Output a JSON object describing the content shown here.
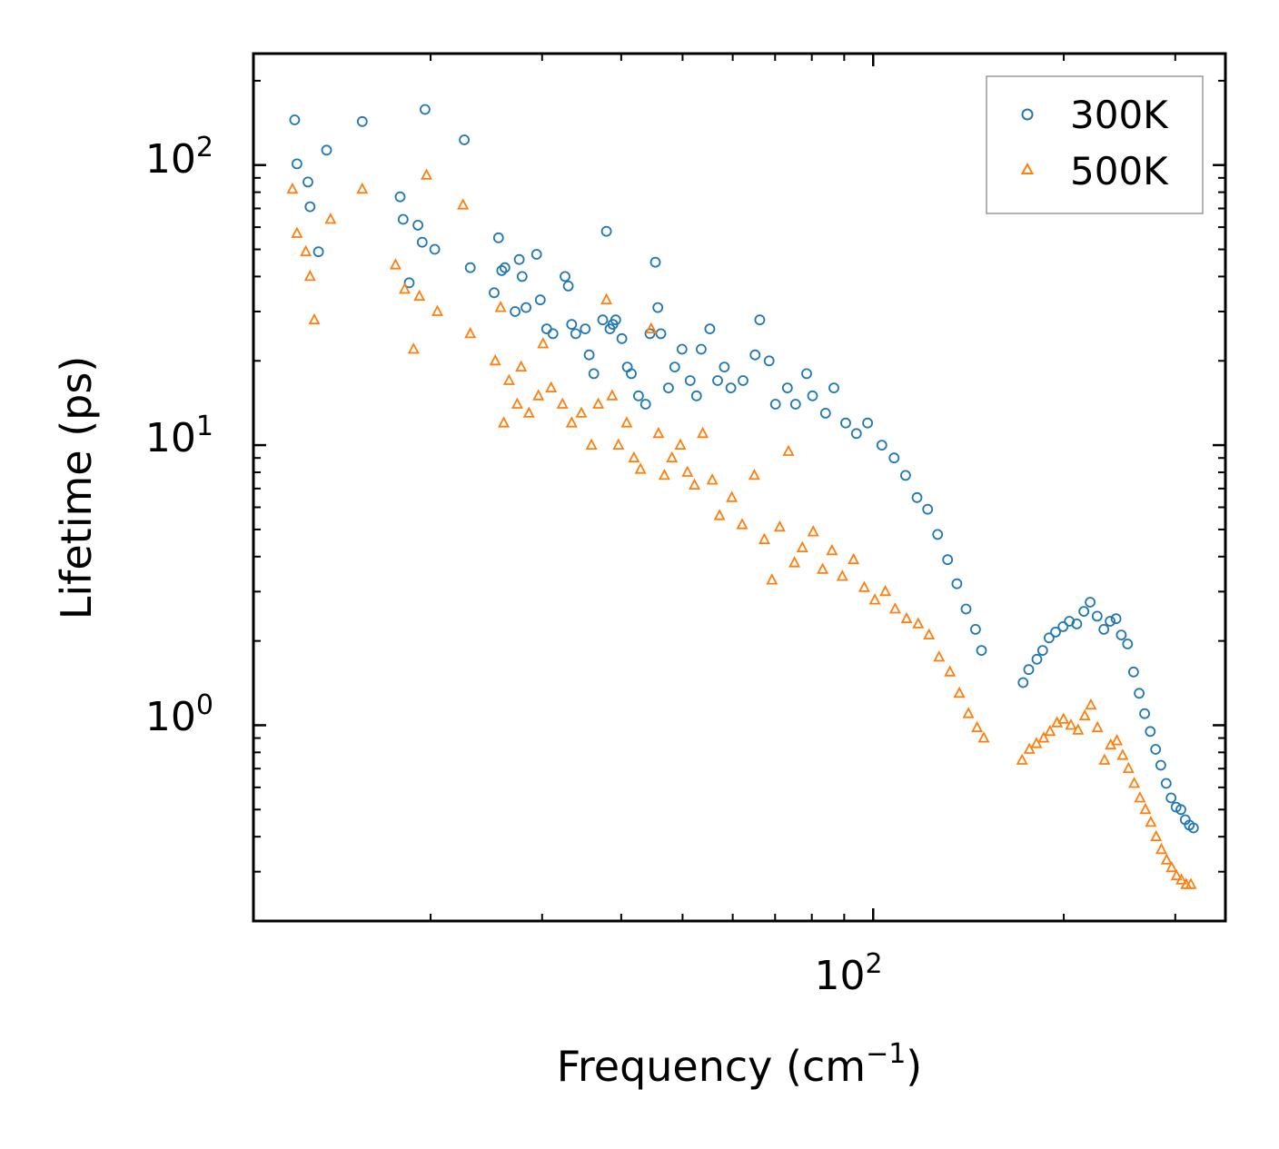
{
  "chart_data": {
    "type": "scatter",
    "title": "",
    "xlabel": "Frequency (cm",
    "xlabel_sup": "−1",
    "xlabel_close": ")",
    "ylabel": "Lifetime (ps)",
    "xscale": "log",
    "yscale": "log",
    "xlim": [
      10.5,
      360
    ],
    "ylim": [
      0.2,
      250
    ],
    "x_major_ticks": [
      {
        "value": 100,
        "base": "10",
        "exp": "2"
      }
    ],
    "y_major_ticks": [
      {
        "value": 1,
        "base": "10",
        "exp": "0"
      },
      {
        "value": 10,
        "base": "10",
        "exp": "1"
      },
      {
        "value": 100,
        "base": "10",
        "exp": "2"
      }
    ],
    "legend_position": "top-right",
    "series": [
      {
        "name": "300K",
        "marker": "circle",
        "color": "#1f77b4",
        "points": [
          [
            12.2,
            145
          ],
          [
            12.3,
            101
          ],
          [
            12.8,
            87
          ],
          [
            12.9,
            71
          ],
          [
            13.3,
            49
          ],
          [
            13.7,
            113
          ],
          [
            15.6,
            143
          ],
          [
            17.9,
            77
          ],
          [
            18.1,
            64
          ],
          [
            18.5,
            38
          ],
          [
            19.1,
            61
          ],
          [
            19.4,
            53
          ],
          [
            19.6,
            158
          ],
          [
            20.3,
            50
          ],
          [
            22.6,
            123
          ],
          [
            23.1,
            43
          ],
          [
            25.2,
            35
          ],
          [
            25.6,
            55
          ],
          [
            25.9,
            42
          ],
          [
            26.2,
            43
          ],
          [
            27.2,
            30
          ],
          [
            27.6,
            46
          ],
          [
            27.9,
            40
          ],
          [
            28.3,
            31
          ],
          [
            29.4,
            48
          ],
          [
            29.8,
            33
          ],
          [
            30.5,
            26
          ],
          [
            31.2,
            25
          ],
          [
            32.6,
            40
          ],
          [
            33.0,
            37
          ],
          [
            33.4,
            27
          ],
          [
            33.9,
            25
          ],
          [
            35.1,
            26
          ],
          [
            35.6,
            21
          ],
          [
            36.2,
            18
          ],
          [
            37.4,
            28
          ],
          [
            37.9,
            58
          ],
          [
            38.4,
            26
          ],
          [
            38.8,
            27
          ],
          [
            39.2,
            28
          ],
          [
            40.1,
            24
          ],
          [
            40.9,
            19
          ],
          [
            41.5,
            18
          ],
          [
            42.6,
            15
          ],
          [
            43.7,
            14
          ],
          [
            44.4,
            25
          ],
          [
            45.3,
            45
          ],
          [
            45.7,
            31
          ],
          [
            46.2,
            25
          ],
          [
            47.5,
            16
          ],
          [
            48.6,
            19
          ],
          [
            49.9,
            22
          ],
          [
            51.4,
            17
          ],
          [
            52.6,
            15
          ],
          [
            53.5,
            22
          ],
          [
            55.2,
            26
          ],
          [
            56.8,
            17
          ],
          [
            58.2,
            19
          ],
          [
            59.6,
            16
          ],
          [
            62.3,
            17
          ],
          [
            65.1,
            21
          ],
          [
            66.2,
            28
          ],
          [
            68.5,
            20
          ],
          [
            70.1,
            14
          ],
          [
            73.2,
            16
          ],
          [
            75.4,
            14
          ],
          [
            78.5,
            18
          ],
          [
            80.2,
            15
          ],
          [
            84.1,
            13
          ],
          [
            86.7,
            16
          ],
          [
            90.5,
            12
          ],
          [
            94.1,
            11
          ],
          [
            98.0,
            12
          ],
          [
            103.2,
            10
          ],
          [
            107.9,
            9
          ],
          [
            112.5,
            7.8
          ],
          [
            117.3,
            6.5
          ],
          [
            121.9,
            5.9
          ],
          [
            126.4,
            4.8
          ],
          [
            131.1,
            3.9
          ],
          [
            135.6,
            3.2
          ],
          [
            140.2,
            2.6
          ],
          [
            145.1,
            2.2
          ],
          [
            148.3,
            1.85
          ],
          [
            172.5,
            1.42
          ],
          [
            176.1,
            1.58
          ],
          [
            181.4,
            1.72
          ],
          [
            185.2,
            1.85
          ],
          [
            189.6,
            2.05
          ],
          [
            194.1,
            2.15
          ],
          [
            199.5,
            2.25
          ],
          [
            204.1,
            2.35
          ],
          [
            209.7,
            2.3
          ],
          [
            215.2,
            2.55
          ],
          [
            220.1,
            2.75
          ],
          [
            225.8,
            2.45
          ],
          [
            231.4,
            2.2
          ],
          [
            236.7,
            2.35
          ],
          [
            241.9,
            2.4
          ],
          [
            246.5,
            2.1
          ],
          [
            252.2,
            1.95
          ],
          [
            257.8,
            1.55
          ],
          [
            263.1,
            1.3
          ],
          [
            268.4,
            1.1
          ],
          [
            273.9,
            0.95
          ],
          [
            279.3,
            0.82
          ],
          [
            284.6,
            0.72
          ],
          [
            290.2,
            0.62
          ],
          [
            295.5,
            0.55
          ],
          [
            300.9,
            0.51
          ],
          [
            306.2,
            0.5
          ],
          [
            311.1,
            0.46
          ],
          [
            315.8,
            0.44
          ],
          [
            320.5,
            0.43
          ]
        ]
      },
      {
        "name": "500K",
        "marker": "triangle",
        "color": "#ff7f0e",
        "points": [
          [
            12.1,
            82
          ],
          [
            12.3,
            57
          ],
          [
            12.7,
            49
          ],
          [
            12.9,
            40
          ],
          [
            13.1,
            28
          ],
          [
            13.9,
            64
          ],
          [
            15.6,
            82
          ],
          [
            17.6,
            44
          ],
          [
            18.2,
            36
          ],
          [
            18.8,
            22
          ],
          [
            19.2,
            34
          ],
          [
            19.7,
            92
          ],
          [
            20.5,
            30
          ],
          [
            22.5,
            72
          ],
          [
            23.1,
            25
          ],
          [
            25.3,
            20
          ],
          [
            25.8,
            31
          ],
          [
            26.1,
            12
          ],
          [
            26.6,
            17
          ],
          [
            27.4,
            14
          ],
          [
            27.8,
            19
          ],
          [
            28.6,
            13
          ],
          [
            29.6,
            15
          ],
          [
            30.1,
            23
          ],
          [
            31.0,
            16
          ],
          [
            32.3,
            14
          ],
          [
            33.4,
            12
          ],
          [
            34.6,
            13
          ],
          [
            35.9,
            10
          ],
          [
            36.8,
            14
          ],
          [
            37.9,
            33
          ],
          [
            38.7,
            15
          ],
          [
            39.6,
            10
          ],
          [
            40.8,
            12
          ],
          [
            41.9,
            9
          ],
          [
            42.9,
            8.2
          ],
          [
            44.6,
            26
          ],
          [
            45.8,
            11
          ],
          [
            46.8,
            7.8
          ],
          [
            48.1,
            9
          ],
          [
            49.6,
            10
          ],
          [
            50.9,
            8
          ],
          [
            52.2,
            7.2
          ],
          [
            53.8,
            11
          ],
          [
            55.7,
            7.5
          ],
          [
            57.2,
            5.6
          ],
          [
            59.8,
            6.5
          ],
          [
            62.1,
            5.2
          ],
          [
            64.9,
            7.8
          ],
          [
            67.3,
            4.6
          ],
          [
            69.2,
            3.3
          ],
          [
            71.2,
            5.1
          ],
          [
            73.5,
            9.5
          ],
          [
            75.1,
            3.8
          ],
          [
            77.3,
            4.3
          ],
          [
            80.4,
            4.9
          ],
          [
            83.2,
            3.6
          ],
          [
            86.1,
            4.2
          ],
          [
            89.4,
            3.4
          ],
          [
            93.1,
            3.9
          ],
          [
            96.8,
            3.1
          ],
          [
            100.6,
            2.8
          ],
          [
            104.5,
            3.0
          ],
          [
            108.3,
            2.6
          ],
          [
            112.9,
            2.4
          ],
          [
            117.8,
            2.3
          ],
          [
            122.5,
            2.1
          ],
          [
            127.1,
            1.75
          ],
          [
            132.2,
            1.55
          ],
          [
            136.8,
            1.3
          ],
          [
            141.4,
            1.1
          ],
          [
            145.9,
            0.98
          ],
          [
            149.5,
            0.9
          ],
          [
            171.9,
            0.75
          ],
          [
            176.5,
            0.82
          ],
          [
            181.1,
            0.86
          ],
          [
            185.9,
            0.9
          ],
          [
            190.2,
            0.95
          ],
          [
            195.1,
            1.02
          ],
          [
            199.8,
            1.05
          ],
          [
            205.3,
            1.0
          ],
          [
            210.7,
            0.96
          ],
          [
            215.9,
            1.08
          ],
          [
            220.7,
            1.18
          ],
          [
            226.1,
            0.98
          ],
          [
            231.9,
            0.75
          ],
          [
            237.2,
            0.85
          ],
          [
            242.6,
            0.88
          ],
          [
            247.8,
            0.78
          ],
          [
            253.1,
            0.7
          ],
          [
            258.4,
            0.62
          ],
          [
            263.8,
            0.55
          ],
          [
            269.1,
            0.5
          ],
          [
            274.5,
            0.45
          ],
          [
            279.8,
            0.4
          ],
          [
            285.2,
            0.36
          ],
          [
            290.7,
            0.33
          ],
          [
            296.1,
            0.31
          ],
          [
            301.4,
            0.29
          ],
          [
            306.8,
            0.28
          ],
          [
            312.1,
            0.27
          ],
          [
            317.5,
            0.27
          ]
        ]
      }
    ]
  }
}
